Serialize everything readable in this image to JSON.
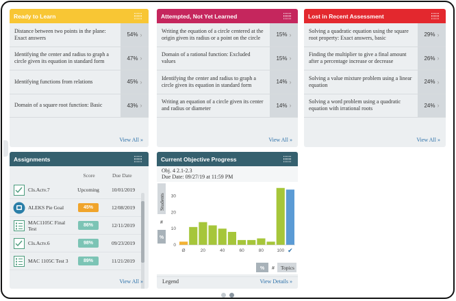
{
  "cards": {
    "ready": {
      "title": "Ready to Learn",
      "items": [
        {
          "text": "Distance between two points in the plane: Exact answers",
          "pct": "54%"
        },
        {
          "text": "Identifying the center and radius to graph a circle given its equation in standard form",
          "pct": "47%"
        },
        {
          "text": "Identifying functions from relations",
          "pct": "45%"
        },
        {
          "text": "Domain of a square root function: Basic",
          "pct": "43%"
        }
      ],
      "view_all": "View All »"
    },
    "attempted": {
      "title": "Attempted, Not Yet Learned",
      "items": [
        {
          "text": "Writing the equation of a circle centered at the origin given its radius or a point on the circle",
          "pct": "15%"
        },
        {
          "text": "Domain of a rational function: Excluded values",
          "pct": "15%"
        },
        {
          "text": "Identifying the center and radius to graph a circle given its equation in standard form",
          "pct": "14%"
        },
        {
          "text": "Writing an equation of a circle given its center and radius or diameter",
          "pct": "14%"
        }
      ],
      "view_all": "View All »"
    },
    "lost": {
      "title": "Lost in Recent Assessment",
      "items": [
        {
          "text": "Solving a quadratic equation using the square root property: Exact answers, basic",
          "pct": "29%"
        },
        {
          "text": "Finding the multiplier to give a final amount after a percentage increase or decrease",
          "pct": "26%"
        },
        {
          "text": "Solving a value mixture problem using a linear equation",
          "pct": "24%"
        },
        {
          "text": "Solving a word problem using a quadratic equation with irrational roots",
          "pct": "24%"
        }
      ],
      "view_all": "View All »"
    }
  },
  "assignments": {
    "title": "Assignments",
    "col_score": "Score",
    "col_due": "Due Date",
    "rows": [
      {
        "name": "Cls.Actv.7",
        "score": "Upcoming",
        "badge": false,
        "date": "10/01/2019",
        "icon": "checklist-icon"
      },
      {
        "name": "ALEKS Pie Goal",
        "score": "45%",
        "badge": true,
        "badge_color": "#f0a42b",
        "date": "12/08/2019",
        "icon": "aleks-pie-icon"
      },
      {
        "name": "MAC1105C Final Test",
        "score": "86%",
        "badge": true,
        "badge_color": "#7cc4b5",
        "date": "12/11/2019",
        "icon": "test-icon"
      },
      {
        "name": "Cls.Actv.6",
        "score": "98%",
        "badge": true,
        "badge_color": "#7cc4b5",
        "date": "09/23/2019",
        "icon": "checklist-icon"
      },
      {
        "name": "MAC 1105C Test 3",
        "score": "89%",
        "badge": true,
        "badge_color": "#7cc4b5",
        "date": "11/21/2019",
        "icon": "test-icon"
      }
    ],
    "view_all": "View All »"
  },
  "progress": {
    "title": "Current Objective Progress",
    "objective": "Obj. 4 2.1-2.3",
    "due": "Due Date: 09/27/19 at 11:59 PM",
    "side_tab_students": "Students",
    "side_tab_hash": "#",
    "side_tab_pct": "%",
    "toggle_pct": "%",
    "toggle_hash": "#",
    "toggle_topics": "Topics",
    "legend": "Legend",
    "view_details": "View Details »"
  },
  "chart_data": {
    "type": "bar",
    "x_tick_labels": [
      "Ø",
      "20",
      "40",
      "60",
      "80",
      "100"
    ],
    "y_tick_labels": [
      "0",
      "10",
      "20",
      "30"
    ],
    "ylim": [
      0,
      37
    ],
    "bars": [
      {
        "x": 0,
        "value": 2,
        "color": "#f3b233"
      },
      {
        "x": 10,
        "value": 11,
        "color": "#a6c63a"
      },
      {
        "x": 20,
        "value": 14,
        "color": "#a6c63a"
      },
      {
        "x": 30,
        "value": 12,
        "color": "#a6c63a"
      },
      {
        "x": 40,
        "value": 10,
        "color": "#a6c63a"
      },
      {
        "x": 50,
        "value": 8,
        "color": "#a6c63a"
      },
      {
        "x": 60,
        "value": 3,
        "color": "#a6c63a"
      },
      {
        "x": 70,
        "value": 3,
        "color": "#a6c63a"
      },
      {
        "x": 80,
        "value": 4,
        "color": "#a6c63a"
      },
      {
        "x": 90,
        "value": 2,
        "color": "#a6c63a"
      },
      {
        "x": 100,
        "value": 35,
        "color": "#a6c63a"
      },
      {
        "x": 110,
        "value": 34,
        "color": "#5b9bd5"
      }
    ]
  },
  "pagination": {
    "pages": 2,
    "active": 1
  }
}
